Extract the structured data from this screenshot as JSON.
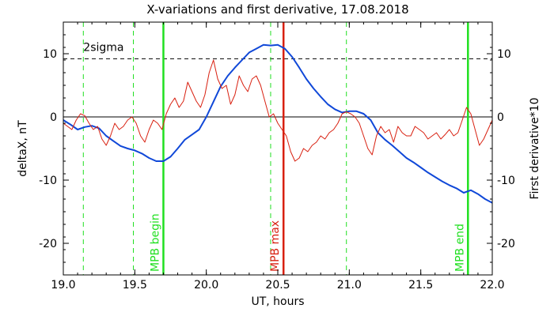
{
  "chart_data": {
    "type": "line",
    "title": "X-variations and first derivative, 17.08.2018",
    "xlabel": "UT, hours",
    "ylabel_left": "deltaX, nT",
    "ylabel_right": "First derivative*10",
    "xlim": [
      19.0,
      22.0
    ],
    "ylim": [
      -25,
      15
    ],
    "x_ticks": [
      19.0,
      19.5,
      20.0,
      20.5,
      21.0,
      21.5,
      22.0
    ],
    "x_tick_labels": [
      "19.0",
      "19.5",
      "20.0",
      "20.5",
      "21.0",
      "21.5",
      "22.0"
    ],
    "y_ticks": [
      -20,
      -10,
      0,
      10
    ],
    "y_tick_labels": [
      "-20",
      "-10",
      "0",
      "10"
    ],
    "colors": {
      "deltaX": "#1048d8",
      "derivative": "#d82010",
      "mpb": "#20e020",
      "mpb_max": "#d82010"
    },
    "threshold": {
      "label": "2sigma",
      "value": 9.2
    },
    "vertical_markers": [
      {
        "x": 19.14,
        "style": "dashed"
      },
      {
        "x": 19.49,
        "style": "dashed"
      },
      {
        "x": 19.7,
        "style": "solid",
        "label": "MPB begin"
      },
      {
        "x": 20.45,
        "style": "dashed"
      },
      {
        "x": 20.54,
        "style": "solid",
        "label": "MPB max"
      },
      {
        "x": 20.98,
        "style": "dashed"
      },
      {
        "x": 21.83,
        "style": "solid",
        "label": "MPB end"
      }
    ],
    "series": [
      {
        "key": "deltaX",
        "x": [
          19.0,
          19.05,
          19.1,
          19.15,
          19.2,
          19.25,
          19.3,
          19.35,
          19.4,
          19.45,
          19.5,
          19.55,
          19.6,
          19.65,
          19.7,
          19.75,
          19.8,
          19.85,
          19.9,
          19.95,
          20.0,
          20.05,
          20.1,
          20.15,
          20.2,
          20.25,
          20.3,
          20.35,
          20.4,
          20.45,
          20.5,
          20.55,
          20.6,
          20.65,
          20.7,
          20.75,
          20.8,
          20.85,
          20.9,
          20.95,
          21.0,
          21.05,
          21.1,
          21.15,
          21.2,
          21.25,
          21.3,
          21.35,
          21.4,
          21.45,
          21.5,
          21.55,
          21.6,
          21.65,
          21.7,
          21.75,
          21.8,
          21.85,
          21.9,
          21.95,
          22.0
        ],
        "values": [
          -0.5,
          -1.2,
          -2.0,
          -1.6,
          -1.4,
          -1.8,
          -3.0,
          -3.8,
          -4.6,
          -5.0,
          -5.3,
          -5.8,
          -6.5,
          -7.0,
          -7.0,
          -6.3,
          -5.0,
          -3.6,
          -2.8,
          -2.0,
          0.0,
          2.4,
          4.8,
          6.5,
          7.8,
          9.0,
          10.2,
          10.8,
          11.4,
          11.3,
          11.4,
          10.8,
          9.5,
          7.8,
          6.0,
          4.5,
          3.2,
          2.0,
          1.2,
          0.7,
          0.9,
          0.9,
          0.5,
          -0.5,
          -2.5,
          -3.6,
          -4.5,
          -5.5,
          -6.5,
          -7.2,
          -8.0,
          -8.8,
          -9.5,
          -10.2,
          -10.8,
          -11.3,
          -12.0,
          -11.6,
          -12.2,
          -13.0,
          -13.6
        ]
      },
      {
        "key": "derivative",
        "x": [
          19.0,
          19.03,
          19.06,
          19.09,
          19.12,
          19.15,
          19.18,
          19.21,
          19.24,
          19.27,
          19.3,
          19.33,
          19.36,
          19.39,
          19.42,
          19.45,
          19.48,
          19.51,
          19.54,
          19.57,
          19.6,
          19.63,
          19.66,
          19.69,
          19.72,
          19.75,
          19.78,
          19.81,
          19.84,
          19.87,
          19.9,
          19.93,
          19.96,
          19.99,
          20.02,
          20.05,
          20.08,
          20.11,
          20.14,
          20.17,
          20.2,
          20.23,
          20.26,
          20.29,
          20.32,
          20.35,
          20.38,
          20.41,
          20.44,
          20.47,
          20.5,
          20.53,
          20.56,
          20.59,
          20.62,
          20.65,
          20.68,
          20.71,
          20.74,
          20.77,
          20.8,
          20.83,
          20.86,
          20.89,
          20.92,
          20.95,
          20.98,
          21.01,
          21.04,
          21.07,
          21.1,
          21.13,
          21.16,
          21.19,
          21.22,
          21.25,
          21.28,
          21.31,
          21.34,
          21.37,
          21.4,
          21.43,
          21.46,
          21.49,
          21.52,
          21.55,
          21.58,
          21.61,
          21.64,
          21.67,
          21.7,
          21.73,
          21.76,
          21.79,
          21.82,
          21.85,
          21.88,
          21.91,
          21.94,
          21.97,
          22.0
        ],
        "values": [
          -1.0,
          -1.5,
          -2.0,
          -0.5,
          0.5,
          0.2,
          -1.0,
          -2.0,
          -1.5,
          -3.5,
          -4.5,
          -3.0,
          -1.0,
          -2.0,
          -1.5,
          -0.5,
          0.0,
          -1.0,
          -3.0,
          -4.0,
          -2.0,
          -0.5,
          -1.0,
          -2.0,
          0.5,
          2.0,
          3.0,
          1.5,
          2.5,
          5.5,
          4.0,
          2.5,
          1.5,
          3.5,
          7.0,
          9.0,
          6.0,
          4.5,
          5.0,
          2.0,
          3.5,
          6.5,
          5.0,
          4.0,
          6.0,
          6.5,
          5.0,
          2.5,
          0.0,
          0.5,
          -1.0,
          -2.0,
          -3.0,
          -5.5,
          -7.0,
          -6.5,
          -5.0,
          -5.5,
          -4.5,
          -4.0,
          -3.0,
          -3.5,
          -2.5,
          -2.0,
          -1.0,
          0.5,
          0.8,
          0.5,
          0.0,
          -1.0,
          -3.0,
          -5.0,
          -6.0,
          -3.0,
          -1.5,
          -2.5,
          -2.0,
          -4.0,
          -1.5,
          -2.5,
          -3.0,
          -3.0,
          -1.5,
          -2.0,
          -2.5,
          -3.5,
          -3.0,
          -2.5,
          -3.5,
          -2.8,
          -2.0,
          -3.0,
          -2.5,
          -0.5,
          1.5,
          0.5,
          -2.0,
          -4.5,
          -3.5,
          -2.0,
          -0.5
        ]
      }
    ]
  }
}
